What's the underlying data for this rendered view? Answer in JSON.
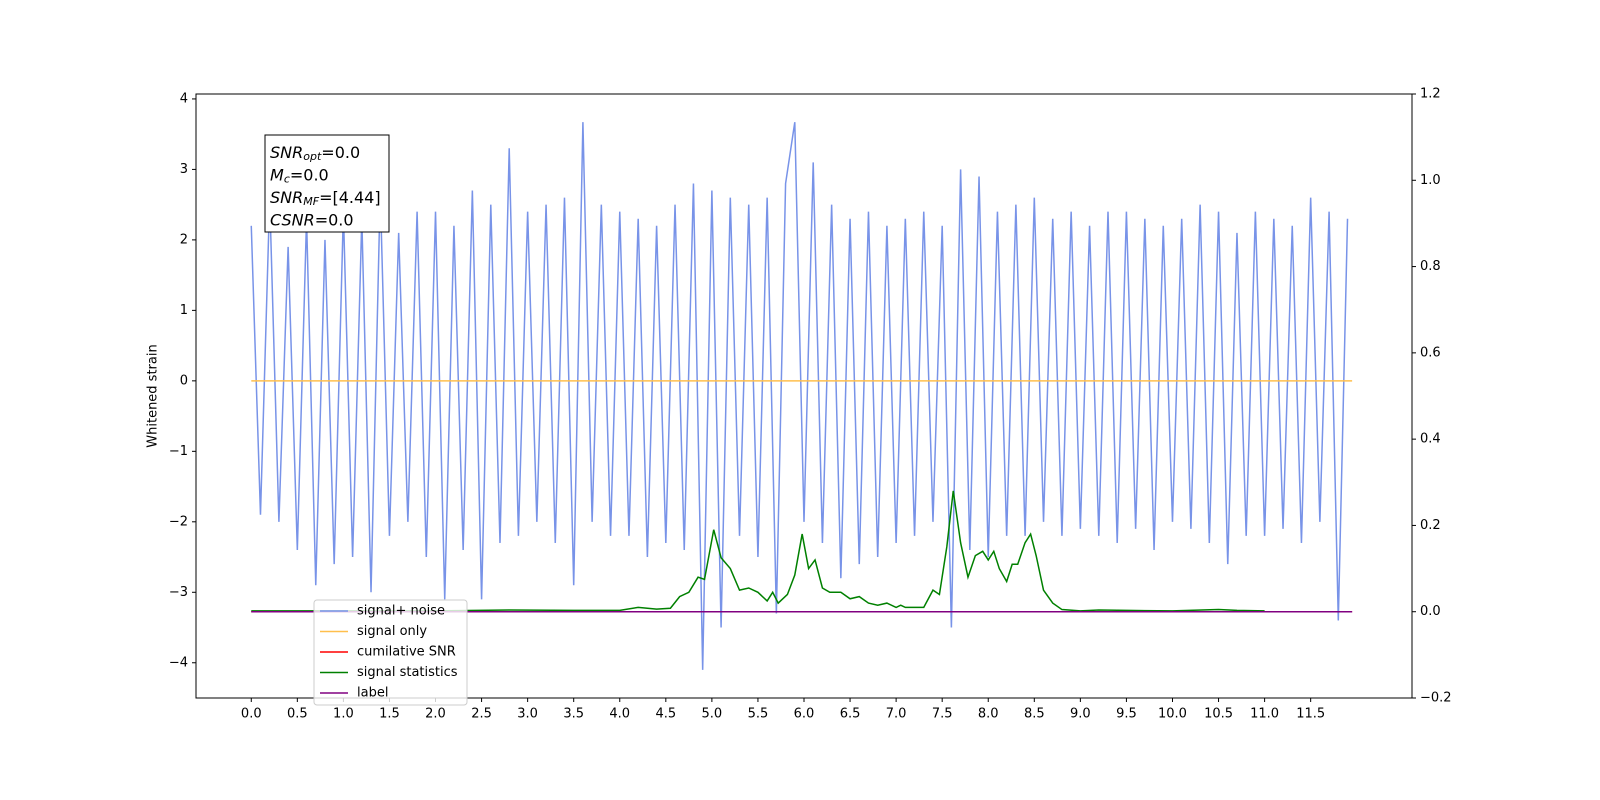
{
  "chart_data": {
    "type": "line",
    "ylabel": "Whitened strain",
    "xlim": [
      -0.6,
      12.6
    ],
    "ylim": [
      -4.5,
      4.07
    ],
    "y2lim": [
      -0.2,
      1.2
    ],
    "xticks": [
      {
        "value": 0,
        "label": "0.0"
      },
      {
        "value": 0.5,
        "label": "0.5"
      },
      {
        "value": 1,
        "label": "1.0"
      },
      {
        "value": 1.5,
        "label": "1.5"
      },
      {
        "value": 2,
        "label": "2.0"
      },
      {
        "value": 2.5,
        "label": "2.5"
      },
      {
        "value": 3,
        "label": "3.0"
      },
      {
        "value": 3.5,
        "label": "3.5"
      },
      {
        "value": 4,
        "label": "4.0"
      },
      {
        "value": 4.5,
        "label": "4.5"
      },
      {
        "value": 5,
        "label": "5.0"
      },
      {
        "value": 5.5,
        "label": "5.5"
      },
      {
        "value": 6,
        "label": "6.0"
      },
      {
        "value": 6.5,
        "label": "6.5"
      },
      {
        "value": 7,
        "label": "7.0"
      },
      {
        "value": 7.5,
        "label": "7.5"
      },
      {
        "value": 8,
        "label": "8.0"
      },
      {
        "value": 8.5,
        "label": "8.5"
      },
      {
        "value": 9,
        "label": "9.0"
      },
      {
        "value": 9.5,
        "label": "9.5"
      },
      {
        "value": 10,
        "label": "10.0"
      },
      {
        "value": 10.5,
        "label": "10.5"
      },
      {
        "value": 11,
        "label": "11.0"
      },
      {
        "value": 11.5,
        "label": "11.5"
      }
    ],
    "yticks": [
      {
        "value": -4,
        "label": "−4"
      },
      {
        "value": -3,
        "label": "−3"
      },
      {
        "value": -2,
        "label": "−2"
      },
      {
        "value": -1,
        "label": "−1"
      },
      0,
      1,
      2,
      3,
      4
    ],
    "y2ticks": [
      {
        "value": -0.2,
        "label": "−0.2"
      },
      {
        "value": 0,
        "label": "0.0"
      },
      {
        "value": 0.2,
        "label": "0.2"
      },
      {
        "value": 0.4,
        "label": "0.4"
      },
      {
        "value": 0.6,
        "label": "0.6"
      },
      {
        "value": 0.8,
        "label": "0.8"
      },
      {
        "value": 1,
        "label": "1.0"
      },
      {
        "value": 1.2,
        "label": "1.2"
      }
    ],
    "annotations": [
      {
        "main": "SNR",
        "sub": "opt",
        "rest": "=0.0"
      },
      {
        "main": "M",
        "sub": "c",
        "rest": "=0.0"
      },
      {
        "main": "SNR",
        "sub": "MF",
        "rest": "=[4.44]"
      },
      {
        "main": "CSNR",
        "sub": null,
        "rest": "=0.0"
      }
    ],
    "series": [
      {
        "name": "signal+ noise",
        "color": "#7893e8",
        "axis": "y",
        "x": [
          0,
          0.1,
          0.2,
          0.3,
          0.4,
          0.5,
          0.6,
          0.7,
          0.8,
          0.9,
          1,
          1.1,
          1.2,
          1.3,
          1.4,
          1.5,
          1.6,
          1.7,
          1.8,
          1.9,
          2,
          2.1,
          2.2,
          2.3,
          2.4,
          2.5,
          2.6,
          2.7,
          2.8,
          2.9,
          3,
          3.1,
          3.2,
          3.3,
          3.4,
          3.5,
          3.6,
          3.7,
          3.8,
          3.9,
          4,
          4.1,
          4.2,
          4.3,
          4.4,
          4.5,
          4.6,
          4.7,
          4.8,
          4.9,
          5,
          5.1,
          5.2,
          5.3,
          5.4,
          5.5,
          5.6,
          5.7,
          5.8,
          5.9,
          6,
          6.1,
          6.2,
          6.3,
          6.4,
          6.5,
          6.6,
          6.7,
          6.8,
          6.9,
          7,
          7.1,
          7.2,
          7.3,
          7.4,
          7.5,
          7.6,
          7.7,
          7.8,
          7.9,
          8,
          8.1,
          8.2,
          8.3,
          8.4,
          8.5,
          8.6,
          8.7,
          8.8,
          8.9,
          9,
          9.1,
          9.2,
          9.3,
          9.4,
          9.5,
          9.6,
          9.7,
          9.8,
          9.9,
          10,
          10.1,
          10.2,
          10.3,
          10.4,
          10.5,
          10.6,
          10.7,
          10.8,
          10.9,
          11,
          11.1,
          11.2,
          11.3,
          11.4,
          11.5,
          11.6,
          11.7,
          11.8,
          11.9
        ],
        "values": [
          2.2,
          -1.9,
          2.6,
          -2.0,
          1.9,
          -2.4,
          2.3,
          -2.9,
          2.0,
          -2.6,
          2.4,
          -2.5,
          2.3,
          -3.0,
          2.7,
          -2.2,
          2.1,
          -2.0,
          2.4,
          -2.5,
          2.4,
          -3.1,
          2.2,
          -2.4,
          2.7,
          -3.1,
          2.5,
          -2.3,
          3.3,
          -2.2,
          2.4,
          -2.0,
          2.5,
          -2.3,
          2.6,
          -2.9,
          3.67,
          -2.0,
          2.5,
          -2.2,
          2.4,
          -2.2,
          2.3,
          -2.5,
          2.2,
          -2.3,
          2.5,
          -2.4,
          2.8,
          -4.1,
          2.7,
          -3.5,
          2.6,
          -2.2,
          2.5,
          -2.5,
          2.6,
          -3.3,
          2.8,
          3.67,
          -2.0,
          3.1,
          -2.3,
          2.5,
          -2.8,
          2.3,
          -2.6,
          2.4,
          -2.5,
          2.2,
          -2.3,
          2.3,
          -2.2,
          2.4,
          -2.0,
          2.2,
          -3.5,
          3.0,
          -2.4,
          2.9,
          -2.5,
          2.4,
          -2.2,
          2.5,
          -2.2,
          2.6,
          -2.0,
          2.3,
          -2.2,
          2.4,
          -2.1,
          2.2,
          -2.2,
          2.4,
          -2.3,
          2.4,
          -2.1,
          2.3,
          -2.4,
          2.2,
          -2.0,
          2.3,
          -2.1,
          2.5,
          -2.3,
          2.4,
          -2.6,
          2.1,
          -2.2,
          2.4,
          -2.2,
          2.3,
          -2.1,
          2.2,
          -2.3,
          2.6,
          -2.0,
          2.4,
          -3.4,
          2.3
        ]
      },
      {
        "name": "signal only",
        "color": "#ffbf4d",
        "axis": "y",
        "x": [
          0,
          11.95
        ],
        "values": [
          0,
          0
        ]
      },
      {
        "name": "cumilative SNR",
        "color": "#ff0000",
        "axis": "y2",
        "x": [
          0,
          11.95
        ],
        "values": [
          0,
          0
        ]
      },
      {
        "name": "signal statistics",
        "color": "#008000",
        "axis": "y2",
        "x": [
          0,
          1,
          2,
          2.8,
          3.5,
          4.0,
          4.2,
          4.4,
          4.55,
          4.65,
          4.75,
          4.85,
          4.92,
          5.02,
          5.1,
          5.2,
          5.3,
          5.4,
          5.5,
          5.6,
          5.66,
          5.72,
          5.82,
          5.9,
          5.98,
          6.05,
          6.12,
          6.2,
          6.28,
          6.4,
          6.5,
          6.6,
          6.7,
          6.8,
          6.9,
          7.0,
          7.05,
          7.1,
          7.3,
          7.4,
          7.47,
          7.55,
          7.62,
          7.7,
          7.78,
          7.86,
          7.94,
          8.0,
          8.06,
          8.12,
          8.2,
          8.26,
          8.32,
          8.4,
          8.46,
          8.52,
          8.6,
          8.7,
          8.8,
          9.0,
          9.2,
          9.5,
          10.0,
          10.5,
          10.7,
          11.0
        ],
        "values": [
          0.002,
          0.002,
          0.002,
          0.004,
          0.003,
          0.003,
          0.01,
          0.006,
          0.008,
          0.035,
          0.045,
          0.08,
          0.075,
          0.19,
          0.125,
          0.1,
          0.05,
          0.055,
          0.045,
          0.025,
          0.045,
          0.02,
          0.04,
          0.085,
          0.18,
          0.1,
          0.12,
          0.055,
          0.045,
          0.045,
          0.03,
          0.035,
          0.02,
          0.015,
          0.02,
          0.01,
          0.015,
          0.01,
          0.01,
          0.05,
          0.04,
          0.15,
          0.28,
          0.16,
          0.08,
          0.13,
          0.14,
          0.12,
          0.14,
          0.1,
          0.07,
          0.11,
          0.11,
          0.16,
          0.18,
          0.13,
          0.05,
          0.02,
          0.005,
          0.002,
          0.004,
          0.003,
          0.002,
          0.005,
          0.003,
          0.002
        ]
      },
      {
        "name": "label",
        "color": "#800080",
        "axis": "y2",
        "x": [
          0,
          11.95
        ],
        "values": [
          0,
          0
        ]
      }
    ]
  }
}
